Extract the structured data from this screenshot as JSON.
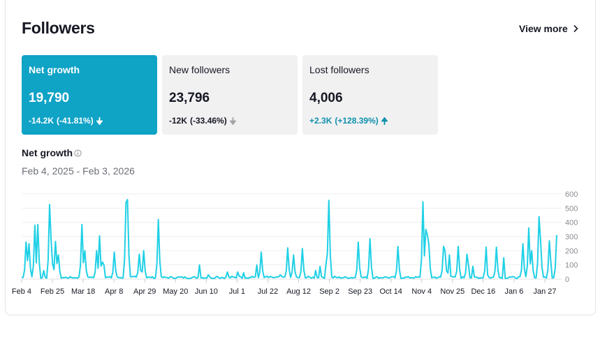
{
  "header": {
    "title": "Followers",
    "view_more": "View more"
  },
  "metrics": [
    {
      "label": "Net growth",
      "value": "19,790",
      "change": "-14.2K",
      "change_pct": "(-41.81%)",
      "direction": "down"
    },
    {
      "label": "New followers",
      "value": "23,796",
      "change": "-12K",
      "change_pct": "(-33.46%)",
      "direction": "down"
    },
    {
      "label": "Lost followers",
      "value": "4,006",
      "change": "+2.3K",
      "change_pct": "(+128.39%)",
      "direction": "up"
    }
  ],
  "section": {
    "title": "Net growth",
    "date_range": "Feb 4, 2025 - Feb 3, 2026"
  },
  "colors": {
    "accent": "#0fa3c6",
    "line": "#1fd0e6",
    "up": "#0f90ad"
  },
  "chart_data": {
    "type": "line",
    "ylim": [
      0,
      600
    ],
    "y_ticks": [
      "600",
      "500",
      "400",
      "300",
      "200",
      "100",
      "0"
    ],
    "x_ticks": [
      "Feb 4",
      "Feb 25",
      "Mar 18",
      "Apr 8",
      "Apr 29",
      "May 20",
      "Jun 10",
      "Jul 1",
      "Jul 22",
      "Aug 12",
      "Sep 2",
      "Sep 23",
      "Oct 14",
      "Nov 4",
      "Nov 25",
      "Dec 16",
      "Jan 6",
      "Jan 27"
    ],
    "spikes": [
      [
        0,
        10
      ],
      [
        2,
        260
      ],
      [
        3,
        130
      ],
      [
        4,
        250
      ],
      [
        7,
        380
      ],
      [
        8,
        385
      ],
      [
        11,
        60
      ],
      [
        14,
        525
      ],
      [
        15,
        280
      ],
      [
        16,
        110
      ],
      [
        17,
        265
      ],
      [
        18,
        110
      ],
      [
        19,
        170
      ],
      [
        22,
        10
      ],
      [
        27,
        10
      ],
      [
        31,
        385
      ],
      [
        32,
        200
      ],
      [
        35,
        15
      ],
      [
        38,
        200
      ],
      [
        39,
        20
      ],
      [
        40,
        305
      ],
      [
        41,
        120
      ],
      [
        42,
        100
      ],
      [
        47,
        190
      ],
      [
        53,
        540
      ],
      [
        54,
        560
      ],
      [
        58,
        20
      ],
      [
        60,
        175
      ],
      [
        61,
        60
      ],
      [
        62,
        200
      ],
      [
        66,
        10
      ],
      [
        70,
        420
      ],
      [
        80,
        15
      ],
      [
        91,
        100
      ],
      [
        95,
        30
      ],
      [
        100,
        20
      ],
      [
        105,
        50
      ],
      [
        107,
        20
      ],
      [
        110,
        50
      ],
      [
        111,
        20
      ],
      [
        113,
        45
      ],
      [
        118,
        20
      ],
      [
        120,
        100
      ],
      [
        122,
        190
      ],
      [
        125,
        20
      ],
      [
        132,
        30
      ],
      [
        136,
        220
      ],
      [
        138,
        50
      ],
      [
        139,
        170
      ],
      [
        143,
        215
      ],
      [
        146,
        20
      ],
      [
        150,
        60
      ],
      [
        152,
        90
      ],
      [
        155,
        100
      ],
      [
        156,
        180
      ],
      [
        157,
        555
      ],
      [
        160,
        20
      ],
      [
        172,
        260
      ],
      [
        178,
        285
      ],
      [
        185,
        15
      ],
      [
        192,
        230
      ],
      [
        199,
        10
      ],
      [
        205,
        545
      ],
      [
        206,
        350
      ],
      [
        207,
        310
      ],
      [
        208,
        250
      ],
      [
        211,
        15
      ],
      [
        215,
        230
      ],
      [
        216,
        200
      ],
      [
        218,
        170
      ],
      [
        219,
        20
      ],
      [
        223,
        230
      ],
      [
        227,
        175
      ],
      [
        228,
        100
      ],
      [
        230,
        90
      ],
      [
        237,
        225
      ],
      [
        238,
        30
      ],
      [
        242,
        225
      ],
      [
        246,
        150
      ],
      [
        249,
        15
      ],
      [
        256,
        250
      ],
      [
        259,
        360
      ],
      [
        260,
        200
      ],
      [
        264,
        440
      ],
      [
        265,
        270
      ],
      [
        267,
        15
      ],
      [
        269,
        270
      ],
      [
        270,
        120
      ],
      [
        272,
        20
      ],
      [
        273,
        310
      ]
    ]
  }
}
